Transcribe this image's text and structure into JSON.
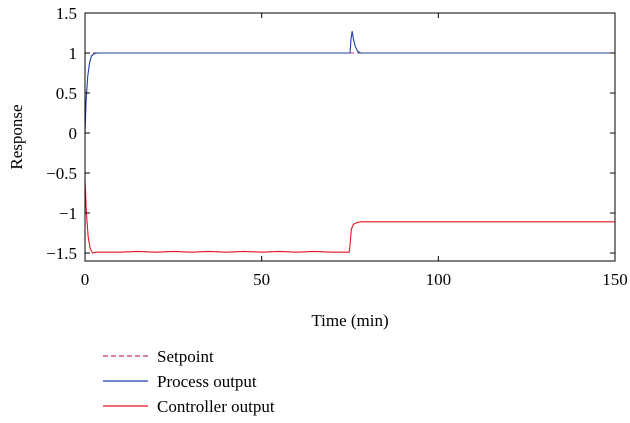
{
  "chart_data": {
    "type": "line",
    "title": "",
    "xlabel": "Time (min)",
    "ylabel": "Response",
    "xlim": [
      0,
      150
    ],
    "ylim": [
      -1.6,
      1.5
    ],
    "xticks": [
      0,
      50,
      100,
      150
    ],
    "xtick_labels": [
      "0",
      "50",
      "100",
      "150"
    ],
    "yticks": [
      -1.5,
      -1,
      -0.5,
      0,
      0.5,
      1,
      1.5
    ],
    "ytick_labels": [
      "−1.5",
      "−1",
      "−0.5",
      "0",
      "0.5",
      "1",
      "1.5"
    ],
    "grid": false,
    "legend_position": "below plot, left",
    "series": [
      {
        "name": "Setpoint",
        "color": "#c0306a",
        "style": "dashed",
        "x": [
          0,
          150
        ],
        "y": [
          1,
          1
        ]
      },
      {
        "name": "Process output",
        "color": "#1f3fa8",
        "style": "solid",
        "x": [
          0,
          0.3,
          0.8,
          1.3,
          1.8,
          2.5,
          3.5,
          5,
          75,
          75.3,
          75.6,
          76,
          76.5,
          77.2,
          78,
          150
        ],
        "y": [
          0,
          0.4,
          0.72,
          0.88,
          0.96,
          0.99,
          1.0,
          1.0,
          1.0,
          1.18,
          1.27,
          1.17,
          1.08,
          1.02,
          1.0,
          1.0
        ]
      },
      {
        "name": "Controller output",
        "color": "#e8141e",
        "style": "solid",
        "x": [
          0,
          0.4,
          0.9,
          1.5,
          2.2,
          3,
          5,
          10,
          15,
          20,
          25,
          30,
          35,
          40,
          45,
          50,
          55,
          60,
          65,
          70,
          74.8,
          75.1,
          75.4,
          76,
          77,
          78,
          150
        ],
        "y": [
          -0.6,
          -1.0,
          -1.3,
          -1.45,
          -1.5,
          -1.49,
          -1.49,
          -1.49,
          -1.48,
          -1.49,
          -1.48,
          -1.49,
          -1.48,
          -1.49,
          -1.48,
          -1.49,
          -1.48,
          -1.49,
          -1.48,
          -1.49,
          -1.49,
          -1.35,
          -1.2,
          -1.14,
          -1.12,
          -1.11,
          -1.11
        ]
      }
    ]
  }
}
